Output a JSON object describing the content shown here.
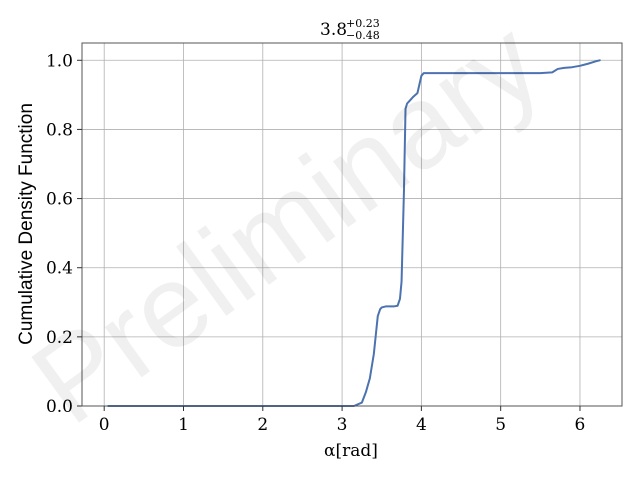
{
  "chart_data": {
    "type": "line",
    "title": {
      "value": "3.8",
      "sup": "+0.23",
      "sub": "−0.48"
    },
    "xlabel": "α[rad]",
    "ylabel": "Cumulative Density Function",
    "xlim": [
      -0.28,
      6.53
    ],
    "ylim": [
      0.0,
      1.05
    ],
    "xticks": [
      0,
      1,
      2,
      3,
      4,
      5,
      6
    ],
    "yticks": [
      0.0,
      0.2,
      0.4,
      0.6,
      0.8,
      1.0
    ],
    "ytick_labels": [
      "0.0",
      "0.2",
      "0.4",
      "0.6",
      "0.8",
      "1.0"
    ],
    "grid": true,
    "watermark": "Preliminary",
    "series": [
      {
        "color": "#4c72b0",
        "x": [
          0.05,
          1.0,
          2.0,
          3.0,
          3.15,
          3.25,
          3.3,
          3.35,
          3.4,
          3.45,
          3.48,
          3.5,
          3.55,
          3.6,
          3.65,
          3.7,
          3.73,
          3.75,
          3.78,
          3.8,
          3.82,
          3.84,
          3.86,
          3.9,
          3.95,
          4.0,
          4.03,
          4.1,
          4.5,
          5.0,
          5.5,
          5.65,
          5.72,
          5.8,
          5.9,
          6.0,
          6.1,
          6.2,
          6.25
        ],
        "y": [
          0.0,
          0.0,
          0.0,
          0.0,
          0.0,
          0.01,
          0.04,
          0.08,
          0.15,
          0.26,
          0.28,
          0.285,
          0.288,
          0.288,
          0.288,
          0.29,
          0.31,
          0.36,
          0.62,
          0.86,
          0.875,
          0.88,
          0.885,
          0.895,
          0.905,
          0.955,
          0.963,
          0.963,
          0.963,
          0.963,
          0.963,
          0.965,
          0.975,
          0.978,
          0.98,
          0.984,
          0.99,
          0.997,
          1.0
        ]
      }
    ]
  }
}
